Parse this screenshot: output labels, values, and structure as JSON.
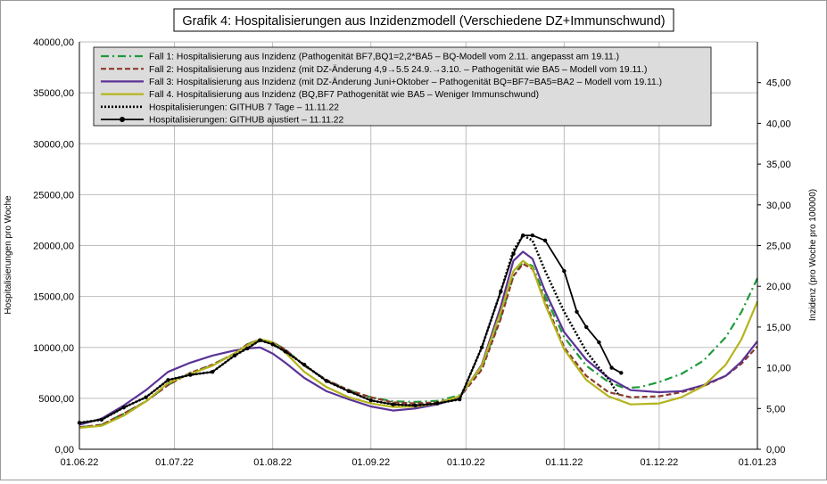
{
  "chart_data": {
    "type": "line",
    "title": "Grafik 4: Hospitalisierungen aus Inzidenzmodell (Verschiedene DZ+Immunschwund)",
    "ylabel": "Hospitalisierungen pro Woche",
    "y2label": "Inzidenz (pro Woche pro 100000)",
    "xlabel": "",
    "ylim": [
      0,
      40000
    ],
    "y2lim": [
      0,
      50
    ],
    "y_ticks": [
      "0,00",
      "5000,00",
      "10000,00",
      "15000,00",
      "20000,00",
      "25000,00",
      "30000,00",
      "35000,00",
      "40000,00"
    ],
    "y2_ticks": [
      "0,00",
      "5,00",
      "10,00",
      "15,00",
      "20,00",
      "25,00",
      "30,00",
      "35,00",
      "40,00",
      "45,00"
    ],
    "x_ticks": [
      "01.06.22",
      "01.07.22",
      "01.08.22",
      "01.09.22",
      "01.10.22",
      "01.11.22",
      "01.12.22",
      "01.01.23"
    ],
    "xlim": [
      "2022-06-01",
      "2023-01-01"
    ],
    "grid": true,
    "legend_position": "top",
    "series": [
      {
        "name": "Fall 1: Hospitalisierung aus Inzidenz (Pathogenität BF7,BQ1=2,2*BA5 – BQ-Modell vom 2.11. angepasst am 19.11.)",
        "color": "#1e9a3a",
        "style": "dashdot",
        "points": [
          [
            "2022-06-01",
            2150
          ],
          [
            "2022-06-08",
            2400
          ],
          [
            "2022-06-15",
            3500
          ],
          [
            "2022-06-22",
            4700
          ],
          [
            "2022-06-29",
            6300
          ],
          [
            "2022-07-06",
            7500
          ],
          [
            "2022-07-13",
            8300
          ],
          [
            "2022-07-20",
            9400
          ],
          [
            "2022-07-24",
            10300
          ],
          [
            "2022-07-28",
            10800
          ],
          [
            "2022-08-01",
            10500
          ],
          [
            "2022-08-05",
            9800
          ],
          [
            "2022-08-11",
            8200
          ],
          [
            "2022-08-18",
            6800
          ],
          [
            "2022-08-25",
            5800
          ],
          [
            "2022-09-01",
            5100
          ],
          [
            "2022-09-08",
            4700
          ],
          [
            "2022-09-15",
            4650
          ],
          [
            "2022-09-22",
            4750
          ],
          [
            "2022-09-29",
            5300
          ],
          [
            "2022-10-06",
            8000
          ],
          [
            "2022-10-12",
            13000
          ],
          [
            "2022-10-16",
            17000
          ],
          [
            "2022-10-19",
            18400
          ],
          [
            "2022-10-22",
            18000
          ],
          [
            "2022-10-26",
            15000
          ],
          [
            "2022-11-01",
            11000
          ],
          [
            "2022-11-08",
            8200
          ],
          [
            "2022-11-15",
            6600
          ],
          [
            "2022-11-20",
            6000
          ],
          [
            "2022-11-25",
            6100
          ],
          [
            "2022-12-01",
            6600
          ],
          [
            "2022-12-08",
            7400
          ],
          [
            "2022-12-15",
            8700
          ],
          [
            "2022-12-22",
            11000
          ],
          [
            "2022-12-27",
            13500
          ],
          [
            "2023-01-01",
            16800
          ]
        ]
      },
      {
        "name": "Fall 2: Hospitalisierung aus Inzidenz (mit DZ-Änderung 4,9→5.5 24.9.→3.10. – Pathogenität wie BA5 – Modell vom 19.11.)",
        "color": "#8b3a2a",
        "style": "dashed",
        "points": [
          [
            "2022-06-01",
            2150
          ],
          [
            "2022-06-08",
            2400
          ],
          [
            "2022-06-15",
            3500
          ],
          [
            "2022-06-22",
            4700
          ],
          [
            "2022-06-29",
            6300
          ],
          [
            "2022-07-06",
            7500
          ],
          [
            "2022-07-13",
            8300
          ],
          [
            "2022-07-20",
            9400
          ],
          [
            "2022-07-24",
            10300
          ],
          [
            "2022-07-28",
            10800
          ],
          [
            "2022-08-01",
            10500
          ],
          [
            "2022-08-05",
            9800
          ],
          [
            "2022-08-11",
            8200
          ],
          [
            "2022-08-18",
            6800
          ],
          [
            "2022-08-25",
            5800
          ],
          [
            "2022-09-01",
            5100
          ],
          [
            "2022-09-08",
            4600
          ],
          [
            "2022-09-15",
            4500
          ],
          [
            "2022-09-22",
            4600
          ],
          [
            "2022-09-29",
            5100
          ],
          [
            "2022-10-06",
            7800
          ],
          [
            "2022-10-12",
            12800
          ],
          [
            "2022-10-16",
            17000
          ],
          [
            "2022-10-19",
            18200
          ],
          [
            "2022-10-22",
            17700
          ],
          [
            "2022-10-26",
            14500
          ],
          [
            "2022-11-01",
            10000
          ],
          [
            "2022-11-08",
            7200
          ],
          [
            "2022-11-15",
            5600
          ],
          [
            "2022-11-22",
            5100
          ],
          [
            "2022-12-01",
            5200
          ],
          [
            "2022-12-08",
            5600
          ],
          [
            "2022-12-15",
            6200
          ],
          [
            "2022-12-22",
            7200
          ],
          [
            "2022-12-27",
            8400
          ],
          [
            "2023-01-01",
            10100
          ]
        ]
      },
      {
        "name": "Fall 3: Hospitalisierung aus Inzidenz (mit DZ-Änderung Juni+Oktober – Pathogenität BQ=BF7=BA5=BA2 – Modell vom 19.11.)",
        "color": "#5b3396",
        "style": "solid",
        "points": [
          [
            "2022-06-01",
            2400
          ],
          [
            "2022-06-08",
            3000
          ],
          [
            "2022-06-15",
            4300
          ],
          [
            "2022-06-22",
            5800
          ],
          [
            "2022-06-29",
            7600
          ],
          [
            "2022-07-06",
            8500
          ],
          [
            "2022-07-13",
            9200
          ],
          [
            "2022-07-20",
            9700
          ],
          [
            "2022-07-24",
            9900
          ],
          [
            "2022-07-28",
            10000
          ],
          [
            "2022-08-01",
            9400
          ],
          [
            "2022-08-05",
            8500
          ],
          [
            "2022-08-11",
            7000
          ],
          [
            "2022-08-18",
            5700
          ],
          [
            "2022-08-25",
            4900
          ],
          [
            "2022-09-01",
            4200
          ],
          [
            "2022-09-08",
            3800
          ],
          [
            "2022-09-15",
            4000
          ],
          [
            "2022-09-22",
            4400
          ],
          [
            "2022-09-29",
            5100
          ],
          [
            "2022-10-06",
            8300
          ],
          [
            "2022-10-12",
            14000
          ],
          [
            "2022-10-16",
            18500
          ],
          [
            "2022-10-19",
            19400
          ],
          [
            "2022-10-22",
            18700
          ],
          [
            "2022-10-26",
            15500
          ],
          [
            "2022-11-01",
            11500
          ],
          [
            "2022-11-08",
            8800
          ],
          [
            "2022-11-15",
            7000
          ],
          [
            "2022-11-22",
            5800
          ],
          [
            "2022-12-01",
            5600
          ],
          [
            "2022-12-08",
            5700
          ],
          [
            "2022-12-15",
            6300
          ],
          [
            "2022-12-22",
            7200
          ],
          [
            "2022-12-27",
            8600
          ],
          [
            "2023-01-01",
            10600
          ]
        ]
      },
      {
        "name": "Fall 4. Hospitalisierung aus Inzidenz (BQ,BF7 Pathogenität wie BA5 – Weniger Immunschwund)",
        "color": "#b4b41e",
        "style": "solid",
        "points": [
          [
            "2022-06-01",
            2100
          ],
          [
            "2022-06-08",
            2300
          ],
          [
            "2022-06-15",
            3300
          ],
          [
            "2022-06-22",
            4700
          ],
          [
            "2022-06-29",
            6500
          ],
          [
            "2022-07-06",
            7400
          ],
          [
            "2022-07-13",
            8200
          ],
          [
            "2022-07-20",
            9400
          ],
          [
            "2022-07-24",
            10200
          ],
          [
            "2022-07-28",
            10800
          ],
          [
            "2022-08-01",
            10500
          ],
          [
            "2022-08-05",
            9500
          ],
          [
            "2022-08-11",
            7600
          ],
          [
            "2022-08-18",
            6100
          ],
          [
            "2022-08-25",
            5100
          ],
          [
            "2022-09-01",
            4500
          ],
          [
            "2022-09-08",
            4150
          ],
          [
            "2022-09-15",
            4200
          ],
          [
            "2022-09-22",
            4500
          ],
          [
            "2022-09-29",
            5200
          ],
          [
            "2022-10-06",
            8200
          ],
          [
            "2022-10-12",
            13500
          ],
          [
            "2022-10-16",
            17500
          ],
          [
            "2022-10-19",
            18500
          ],
          [
            "2022-10-22",
            17800
          ],
          [
            "2022-10-26",
            14200
          ],
          [
            "2022-11-01",
            9800
          ],
          [
            "2022-11-08",
            6800
          ],
          [
            "2022-11-15",
            5200
          ],
          [
            "2022-11-22",
            4400
          ],
          [
            "2022-12-01",
            4500
          ],
          [
            "2022-12-08",
            5100
          ],
          [
            "2022-12-15",
            6200
          ],
          [
            "2022-12-22",
            8300
          ],
          [
            "2022-12-27",
            10800
          ],
          [
            "2023-01-01",
            14500
          ]
        ]
      },
      {
        "name": "Hospitalisierungen: GITHUB 7 Tage – 11.11.22",
        "color": "#000000",
        "style": "dotted",
        "points": [
          [
            "2022-06-01",
            2600
          ],
          [
            "2022-06-08",
            2900
          ],
          [
            "2022-06-15",
            4100
          ],
          [
            "2022-06-22",
            5100
          ],
          [
            "2022-06-29",
            6800
          ],
          [
            "2022-07-06",
            7300
          ],
          [
            "2022-07-13",
            7600
          ],
          [
            "2022-07-20",
            9200
          ],
          [
            "2022-07-24",
            9900
          ],
          [
            "2022-07-28",
            10700
          ],
          [
            "2022-08-01",
            10300
          ],
          [
            "2022-08-05",
            9600
          ],
          [
            "2022-08-11",
            8300
          ],
          [
            "2022-08-18",
            6700
          ],
          [
            "2022-08-25",
            5700
          ],
          [
            "2022-09-01",
            4800
          ],
          [
            "2022-09-08",
            4400
          ],
          [
            "2022-09-15",
            4300
          ],
          [
            "2022-09-22",
            4500
          ],
          [
            "2022-09-29",
            4900
          ],
          [
            "2022-10-06",
            10000
          ],
          [
            "2022-10-12",
            15500
          ],
          [
            "2022-10-16",
            19500
          ],
          [
            "2022-10-19",
            21000
          ],
          [
            "2022-10-22",
            20500
          ],
          [
            "2022-10-26",
            17500
          ],
          [
            "2022-11-01",
            13500
          ],
          [
            "2022-11-08",
            9600
          ],
          [
            "2022-11-12",
            8000
          ],
          [
            "2022-11-15",
            6900
          ],
          [
            "2022-11-18",
            5400
          ]
        ]
      },
      {
        "name": "Hospitalisierungen: GITHUB ajustiert – 11.11.22",
        "color": "#000000",
        "style": "solid-marker",
        "points": [
          [
            "2022-06-01",
            2600
          ],
          [
            "2022-06-08",
            2900
          ],
          [
            "2022-06-15",
            4100
          ],
          [
            "2022-06-22",
            5100
          ],
          [
            "2022-06-29",
            6800
          ],
          [
            "2022-07-06",
            7300
          ],
          [
            "2022-07-13",
            7600
          ],
          [
            "2022-07-20",
            9200
          ],
          [
            "2022-07-24",
            9900
          ],
          [
            "2022-07-28",
            10700
          ],
          [
            "2022-08-01",
            10300
          ],
          [
            "2022-08-05",
            9600
          ],
          [
            "2022-08-11",
            8300
          ],
          [
            "2022-08-18",
            6700
          ],
          [
            "2022-08-25",
            5700
          ],
          [
            "2022-09-01",
            4800
          ],
          [
            "2022-09-08",
            4400
          ],
          [
            "2022-09-15",
            4300
          ],
          [
            "2022-09-22",
            4500
          ],
          [
            "2022-09-29",
            4900
          ],
          [
            "2022-10-06",
            10000
          ],
          [
            "2022-10-12",
            15500
          ],
          [
            "2022-10-16",
            19200
          ],
          [
            "2022-10-19",
            21000
          ],
          [
            "2022-10-22",
            21000
          ],
          [
            "2022-10-26",
            20500
          ],
          [
            "2022-11-01",
            17500
          ],
          [
            "2022-11-05",
            13500
          ],
          [
            "2022-11-08",
            12000
          ],
          [
            "2022-11-12",
            10500
          ],
          [
            "2022-11-16",
            8000
          ],
          [
            "2022-11-19",
            7500
          ]
        ]
      }
    ]
  }
}
